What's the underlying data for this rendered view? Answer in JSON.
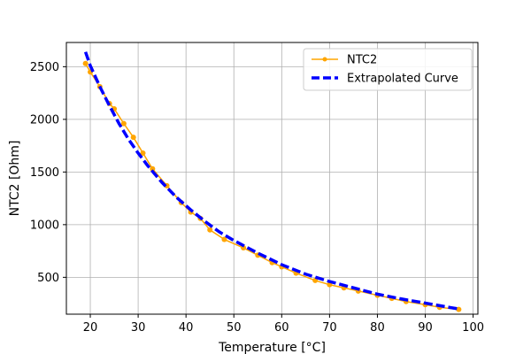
{
  "chart_data": {
    "type": "line",
    "xlabel": "Temperature [°C]",
    "ylabel": "NTC2 [Ohm]",
    "xlim": [
      15,
      101
    ],
    "ylim": [
      150,
      2730
    ],
    "x_ticks": [
      20,
      30,
      40,
      50,
      60,
      70,
      80,
      90,
      100
    ],
    "y_ticks": [
      500,
      1000,
      1500,
      2000,
      2500
    ],
    "grid": true,
    "legend_position": "top-right",
    "series": [
      {
        "name": "NTC2",
        "style": "solid-with-dot-markers",
        "color": "#FFA500",
        "x": [
          19,
          20,
          22,
          24,
          25,
          27,
          29,
          31,
          33,
          36,
          39,
          41,
          43,
          45,
          48,
          52,
          55,
          58,
          60,
          63,
          67,
          70,
          73,
          76,
          80,
          83,
          86,
          90,
          93,
          97
        ],
        "y": [
          2530,
          2450,
          2310,
          2150,
          2100,
          1960,
          1830,
          1680,
          1530,
          1370,
          1210,
          1120,
          1060,
          950,
          860,
          780,
          710,
          640,
          600,
          540,
          470,
          430,
          400,
          370,
          330,
          300,
          270,
          240,
          215,
          195
        ]
      },
      {
        "name": "Extrapolated Curve",
        "style": "dashed",
        "color": "#0000FF",
        "x": [
          19,
          20,
          22,
          24,
          26,
          28,
          30,
          32,
          35,
          38,
          41,
          44,
          47,
          50,
          55,
          60,
          65,
          70,
          75,
          80,
          85,
          90,
          95,
          97
        ],
        "y": [
          2640,
          2510,
          2310,
          2130,
          1960,
          1810,
          1680,
          1560,
          1400,
          1260,
          1140,
          1030,
          930,
          850,
          730,
          620,
          530,
          460,
          400,
          340,
          295,
          255,
          215,
          200
        ]
      }
    ]
  }
}
